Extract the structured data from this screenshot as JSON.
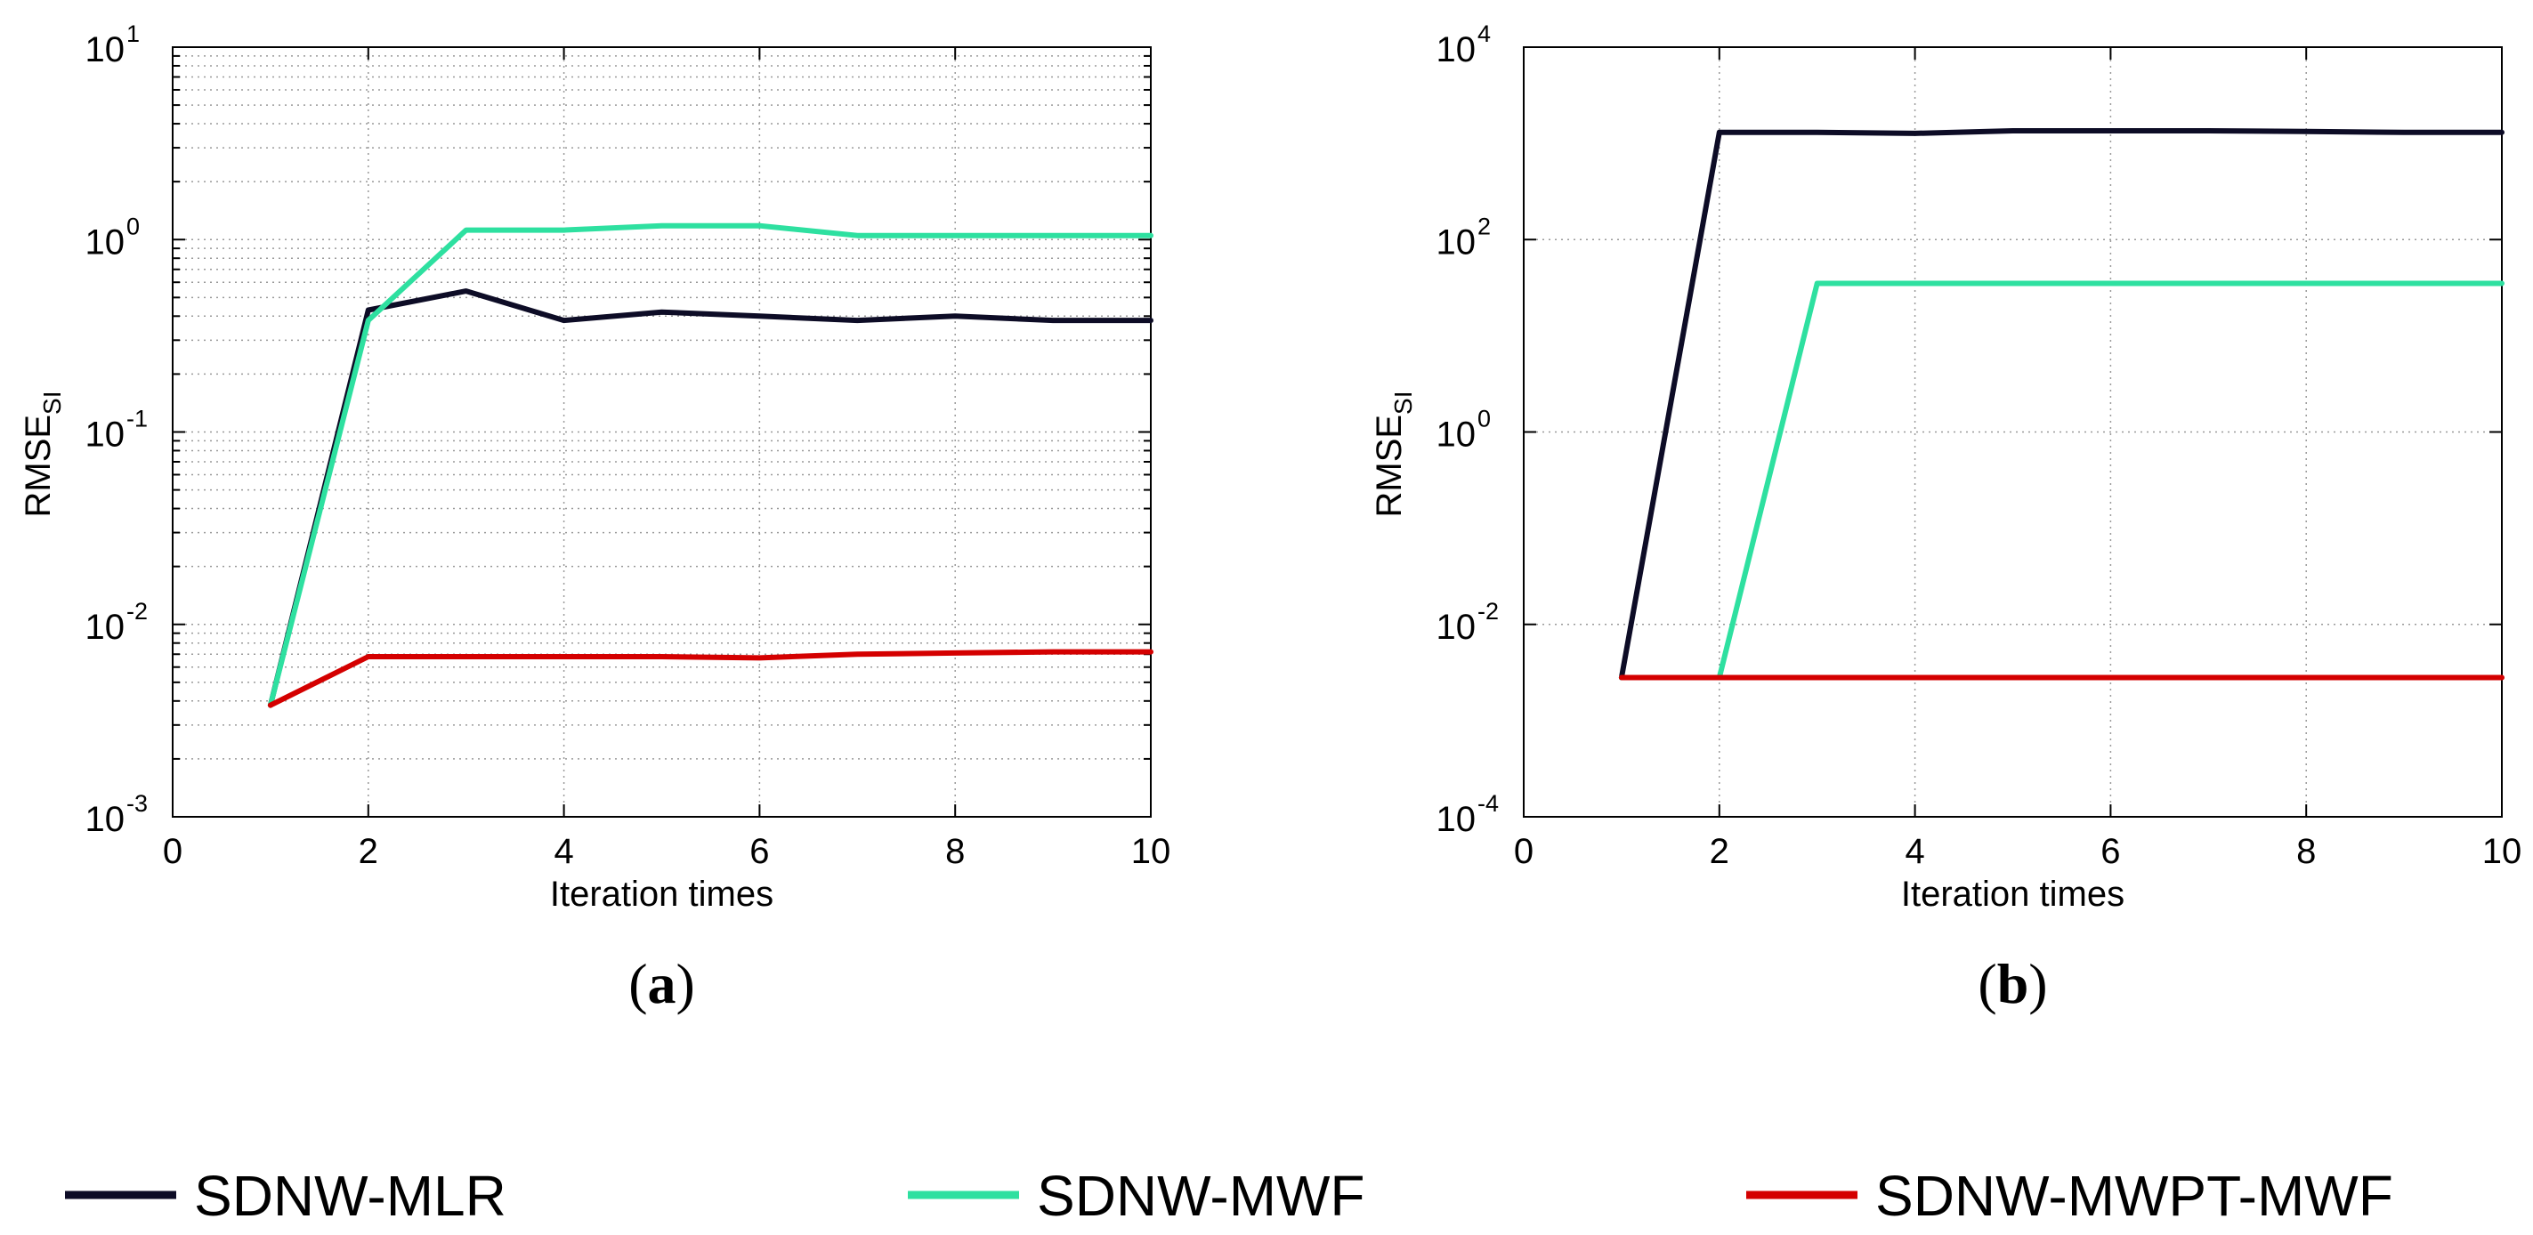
{
  "chart_data": [
    {
      "type": "line",
      "id": "a",
      "caption_letter": "a",
      "yscale": "log",
      "xlabel": "Iteration times",
      "ylabel_main": "RMSE",
      "ylabel_sub": "SI",
      "xlim": [
        0,
        10
      ],
      "ylim_exp": [
        -3,
        1
      ],
      "xticks": [
        "0",
        "2",
        "4",
        "6",
        "8",
        "10"
      ],
      "yticks": [
        {
          "base": "10",
          "exp": "-3"
        },
        {
          "base": "10",
          "exp": "-2"
        },
        {
          "base": "10",
          "exp": "-1"
        },
        {
          "base": "10",
          "exp": "0"
        },
        {
          "base": "10",
          "exp": "1"
        }
      ],
      "grid": "major and minor",
      "series": [
        {
          "name": "SDNW-MLR",
          "color": "#0d0c26",
          "x": [
            1,
            2,
            3,
            4,
            5,
            6,
            7,
            8,
            9,
            10
          ],
          "y": [
            0.0038,
            0.43,
            0.54,
            0.38,
            0.42,
            0.4,
            0.38,
            0.4,
            0.38,
            0.38
          ]
        },
        {
          "name": "SDNW-MWF",
          "color": "#2ee0a0",
          "x": [
            1,
            2,
            3,
            4,
            5,
            6,
            7,
            8,
            9,
            10
          ],
          "y": [
            0.0038,
            0.38,
            1.12,
            1.12,
            1.18,
            1.18,
            1.05,
            1.05,
            1.05,
            1.05
          ]
        },
        {
          "name": "SDNW-MWPT-MWF",
          "color": "#d40000",
          "x": [
            1,
            2,
            3,
            4,
            5,
            6,
            7,
            8,
            9,
            10
          ],
          "y": [
            0.0038,
            0.0068,
            0.0068,
            0.0068,
            0.0068,
            0.0067,
            0.007,
            0.0071,
            0.0072,
            0.0072
          ]
        }
      ]
    },
    {
      "type": "line",
      "id": "b",
      "caption_letter": "b",
      "yscale": "log",
      "xlabel": "Iteration times",
      "ylabel_main": "RMSE",
      "ylabel_sub": "SI",
      "xlim": [
        0,
        10
      ],
      "ylim_exp": [
        -4,
        4
      ],
      "xticks": [
        "0",
        "2",
        "4",
        "6",
        "8",
        "10"
      ],
      "yticks": [
        {
          "base": "10",
          "exp": "-4"
        },
        {
          "base": "10",
          "exp": "-2"
        },
        {
          "base": "10",
          "exp": "0"
        },
        {
          "base": "10",
          "exp": "2"
        },
        {
          "base": "10",
          "exp": "4"
        }
      ],
      "grid": "major",
      "series": [
        {
          "name": "SDNW-MLR",
          "color": "#0d0c26",
          "x": [
            1,
            2,
            3,
            4,
            5,
            6,
            7,
            8,
            9,
            10
          ],
          "y": [
            0.0028,
            1300,
            1300,
            1270,
            1350,
            1350,
            1350,
            1330,
            1300,
            1300
          ]
        },
        {
          "name": "SDNW-MWF",
          "color": "#2ee0a0",
          "x": [
            1,
            2,
            3,
            4,
            5,
            6,
            7,
            8,
            9,
            10
          ],
          "y": [
            0.0028,
            0.0028,
            35,
            35,
            35,
            35,
            35,
            35,
            35,
            35
          ]
        },
        {
          "name": "SDNW-MWPT-MWF",
          "color": "#d40000",
          "x": [
            1,
            2,
            3,
            4,
            5,
            6,
            7,
            8,
            9,
            10
          ],
          "y": [
            0.0028,
            0.0028,
            0.0028,
            0.0028,
            0.0028,
            0.0028,
            0.0028,
            0.0028,
            0.0028,
            0.0028
          ]
        }
      ]
    }
  ],
  "legend": {
    "placement": "bottom",
    "entries": [
      {
        "name": "SDNW-MLR",
        "color": "#0d0c26"
      },
      {
        "name": "SDNW-MWF",
        "color": "#2ee0a0"
      },
      {
        "name": "SDNW-MWPT-MWF",
        "color": "#d40000"
      }
    ]
  }
}
